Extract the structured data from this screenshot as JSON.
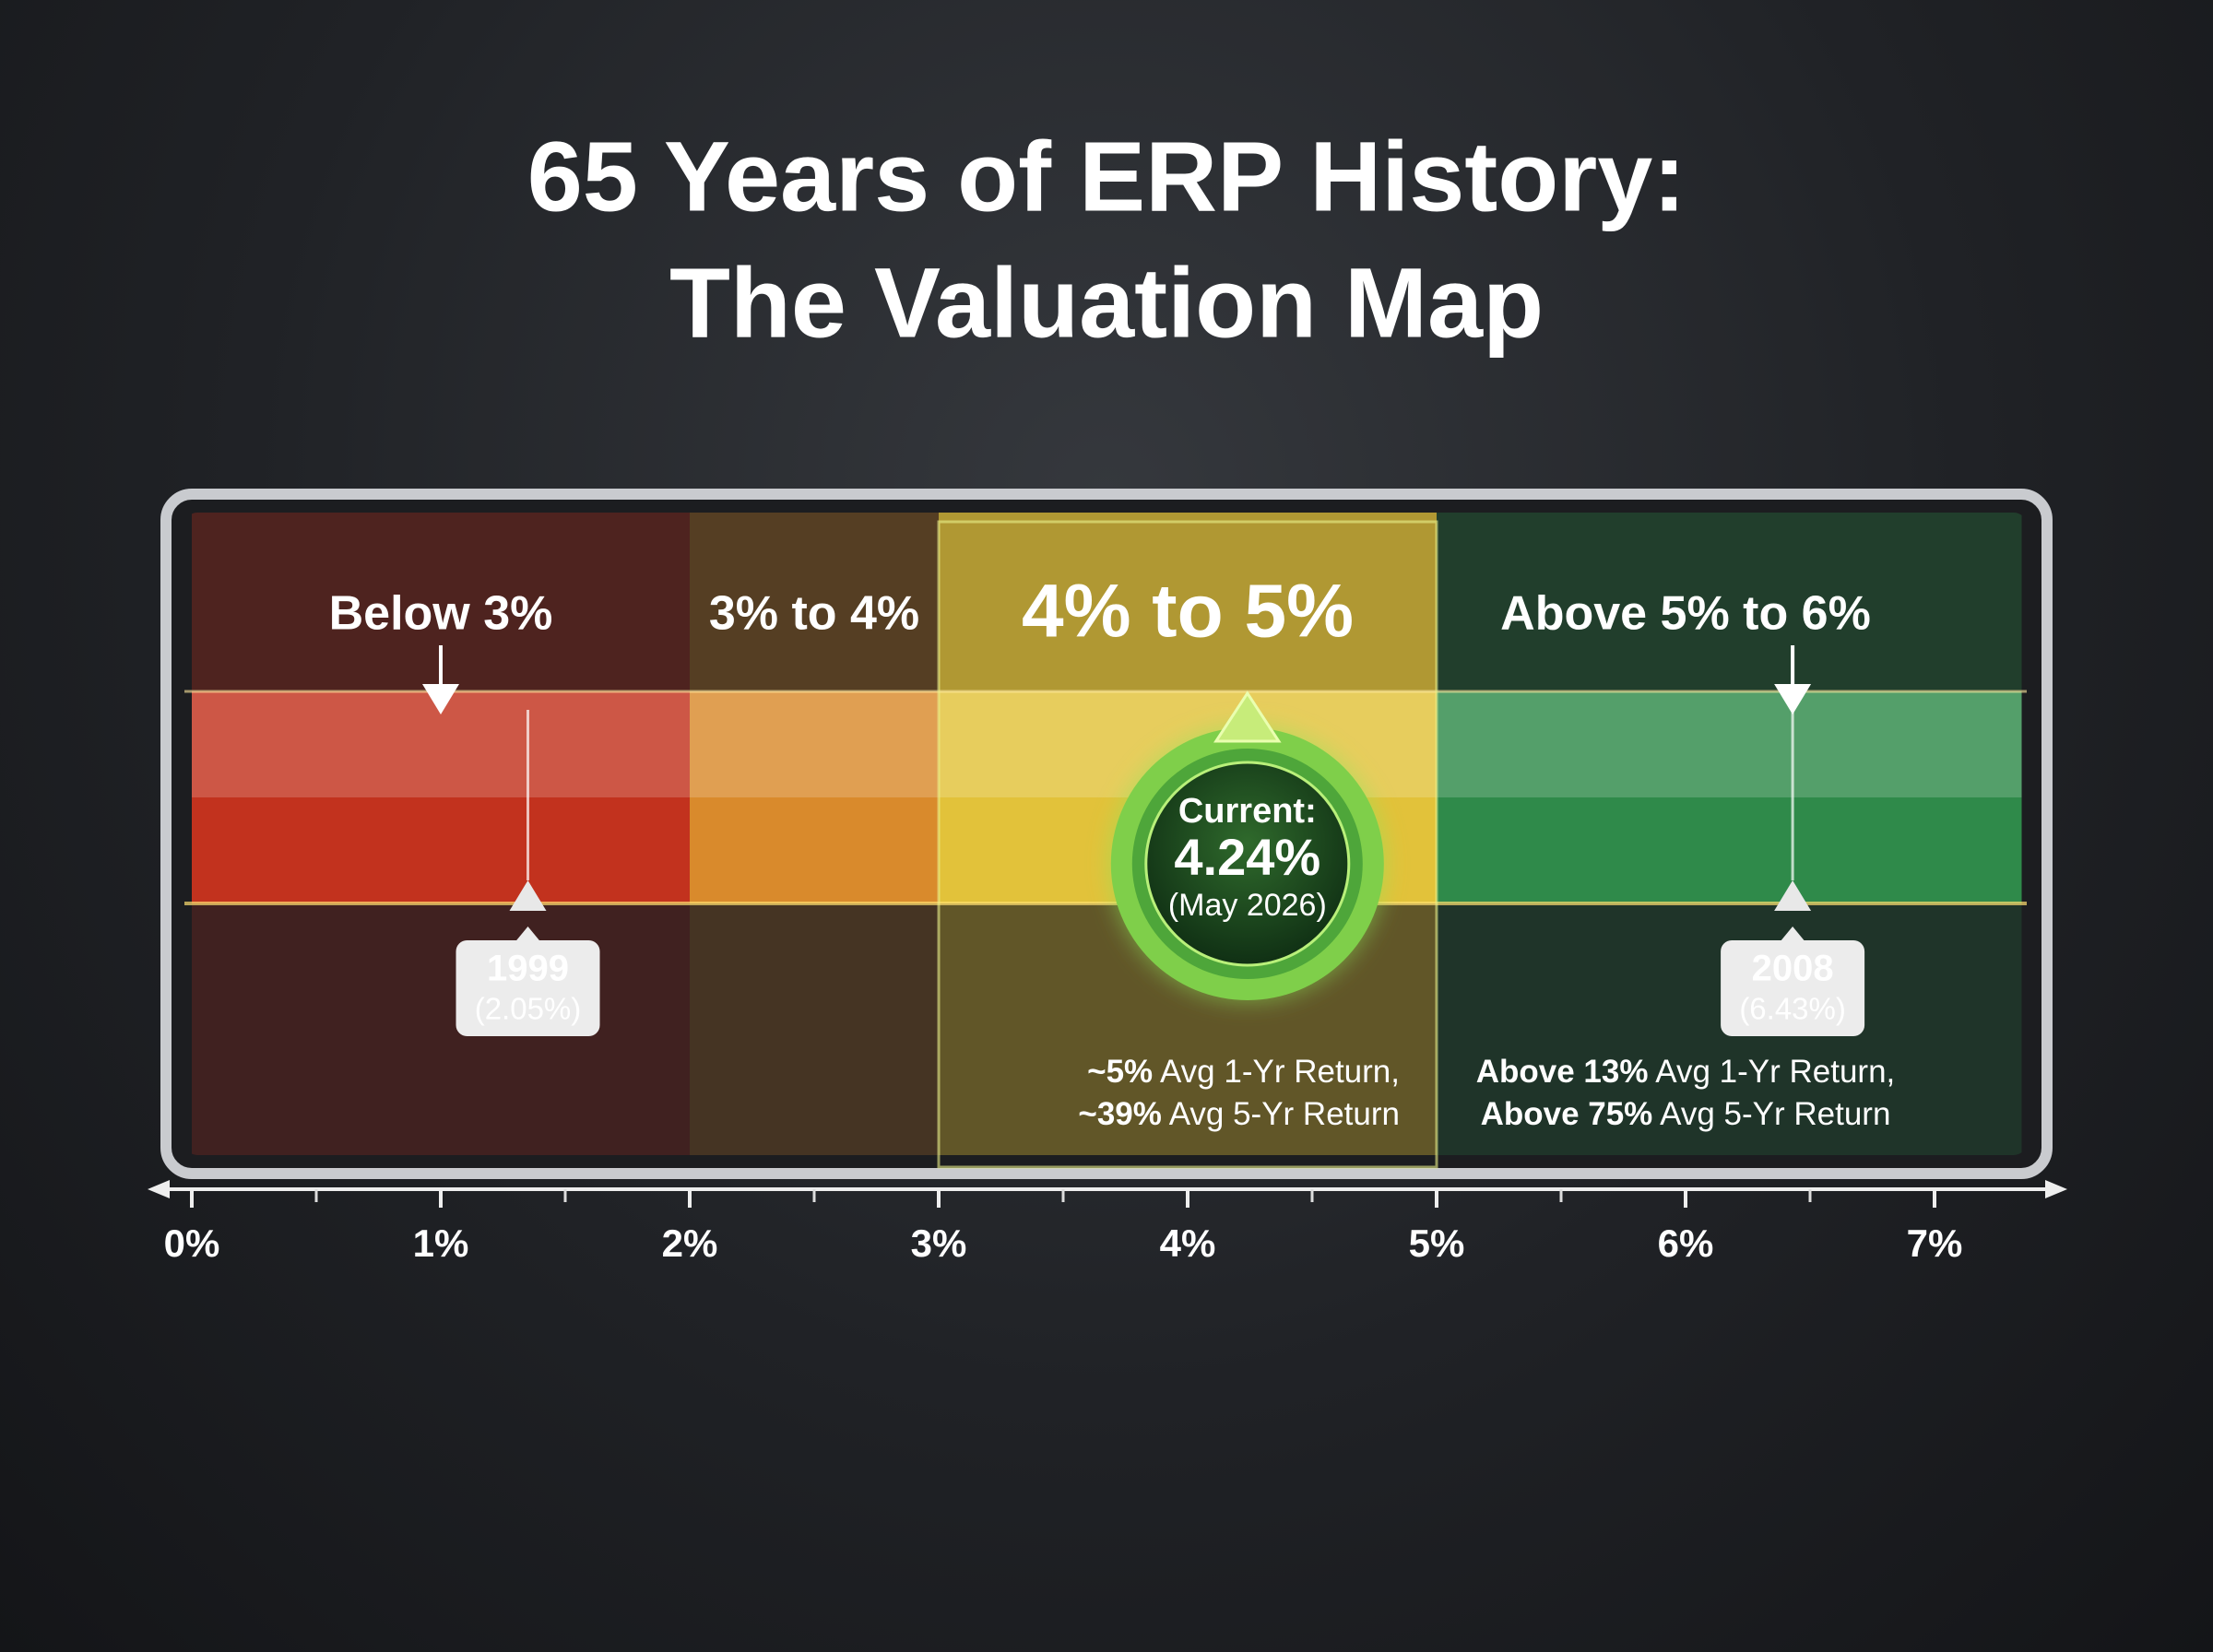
{
  "chart_data": {
    "type": "zone-map",
    "title": [
      "65 Years of ERP History:",
      "The Valuation Map"
    ],
    "xlim": [
      0,
      7
    ],
    "xticks": [
      {
        "value": 0,
        "label": "0%"
      },
      {
        "value": 1,
        "label": "1%"
      },
      {
        "value": 2,
        "label": "2%"
      },
      {
        "value": 3,
        "label": "3%"
      },
      {
        "value": 4,
        "label": "4%"
      },
      {
        "value": 5,
        "label": "5%"
      },
      {
        "value": 6,
        "label": "6%"
      },
      {
        "value": 7,
        "label": "7%"
      }
    ],
    "xticks_minor": [
      0.5,
      1.5,
      2.5,
      3.5,
      4.5,
      5.5,
      6.5
    ],
    "zones": [
      {
        "label": "Below 3%",
        "start": 0,
        "end": 2,
        "color": "#c2321e",
        "arrow": true
      },
      {
        "label": "3% to 4%",
        "start": 2,
        "end": 3,
        "color": "#d98a2c"
      },
      {
        "label": "4% to 5%",
        "start": 3,
        "end": 5,
        "color": "#e2c23a",
        "highlight": true,
        "stats": [
          {
            "emphasis": "~5%",
            "text": "Avg 1-Yr Return,"
          },
          {
            "emphasis": "~39%",
            "text": "Avg 5-Yr Return"
          }
        ]
      },
      {
        "label": "Above 5% to 6%",
        "start": 5,
        "end": 7.35,
        "color": "#2f8a4a",
        "stats": [
          {
            "emphasis": "Above 13%",
            "text": "Avg 1-Yr Return,"
          },
          {
            "emphasis": "Above 75%",
            "text": "Avg 5-Yr Return"
          }
        ]
      }
    ],
    "markers": [
      {
        "label": "1999",
        "value": 2.05,
        "value_label": "(2.05%)",
        "x": 1.35
      },
      {
        "label": "2008",
        "value": 6.43,
        "value_label": "(6.43%)"
      }
    ],
    "current": {
      "label": "Current:",
      "value": 4.24,
      "value_label": "4.24%",
      "note": "(May 2026)"
    }
  }
}
